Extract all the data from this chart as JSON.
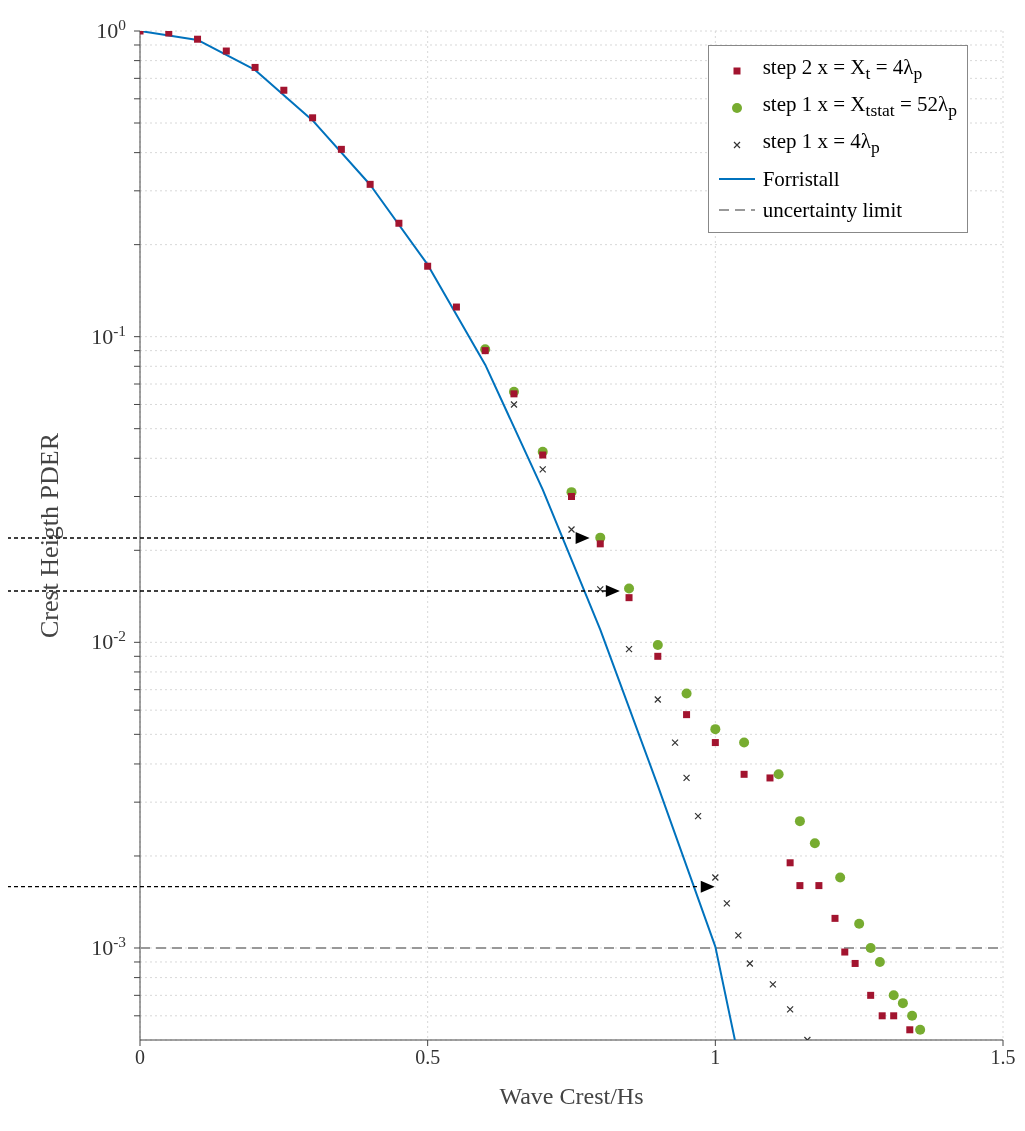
{
  "chart_data": {
    "type": "scatter",
    "xlabel": "Wave Crest/Hs",
    "ylabel": "Crest Heigth PDER",
    "xlim": [
      0,
      1.5
    ],
    "xticks": [
      0,
      0.5,
      1,
      1.5
    ],
    "ylim": [
      0.0005,
      1
    ],
    "log": "y",
    "grid": true,
    "legend": "top right",
    "yticks": [
      {
        "value": 0.0006,
        "label": null
      },
      {
        "value": 0.0007,
        "label": null
      },
      {
        "value": 0.0008,
        "label": null
      },
      {
        "value": 0.0009,
        "label": null
      },
      {
        "value": 0.001,
        "label": "10$^{-3}$"
      },
      {
        "value": 0.002,
        "label": null
      },
      {
        "value": 0.003,
        "label": null
      },
      {
        "value": 0.004,
        "label": null
      },
      {
        "value": 0.005,
        "label": null
      },
      {
        "value": 0.006,
        "label": null
      },
      {
        "value": 0.007,
        "label": null
      },
      {
        "value": 0.008,
        "label": null
      },
      {
        "value": 0.009,
        "label": null
      },
      {
        "value": 0.01,
        "label": "10$^{-2}$"
      },
      {
        "value": 0.02,
        "label": null
      },
      {
        "value": 0.03,
        "label": null
      },
      {
        "value": 0.04,
        "label": null
      },
      {
        "value": 0.05,
        "label": null
      },
      {
        "value": 0.06,
        "label": null
      },
      {
        "value": 0.07,
        "label": null
      },
      {
        "value": 0.08,
        "label": null
      },
      {
        "value": 0.09,
        "label": null
      },
      {
        "value": 0.1,
        "label": "10$^{-1}$"
      },
      {
        "value": 0.2,
        "label": null
      },
      {
        "value": 0.3,
        "label": null
      },
      {
        "value": 0.4,
        "label": null
      },
      {
        "value": 0.5,
        "label": null
      },
      {
        "value": 0.6,
        "label": null
      },
      {
        "value": 0.7,
        "label": null
      },
      {
        "value": 0.8,
        "label": null
      },
      {
        "value": 0.9,
        "label": null
      },
      {
        "value": 1,
        "label": "10$^{0}$"
      }
    ],
    "series": [
      {
        "name": "step 2 x = X$_{t}$ = 4λ$_{p}$",
        "marker": "square",
        "color": "#a2142f",
        "x": [
          0,
          0.05,
          0.1,
          0.15,
          0.2,
          0.25,
          0.3,
          0.35,
          0.4,
          0.45,
          0.5,
          0.55,
          0.6,
          0.65,
          0.7,
          0.75,
          0.8,
          0.85,
          0.9,
          0.95,
          1.0,
          1.05,
          1.095,
          1.13,
          1.147,
          1.18,
          1.208,
          1.225,
          1.243,
          1.27,
          1.29,
          1.31,
          1.338
        ],
        "values": [
          1,
          0.985,
          0.94,
          0.86,
          0.76,
          0.64,
          0.52,
          0.41,
          0.315,
          0.235,
          0.17,
          0.125,
          0.09,
          0.065,
          0.041,
          0.03,
          0.021,
          0.014,
          0.009,
          0.0058,
          0.0047,
          0.0037,
          0.0036,
          0.0019,
          0.0016,
          0.0016,
          0.00125,
          0.00097,
          0.00089,
          0.0007,
          0.0006,
          0.0006,
          0.00054
        ]
      },
      {
        "name": "step 1 x = X$_{t}$$_{stat}$ = 52λ$_{p}$",
        "marker": "circle",
        "color": "#77ac30",
        "x": [
          0.6,
          0.65,
          0.7,
          0.75,
          0.8,
          0.85,
          0.9,
          0.95,
          1.0,
          1.05,
          1.11,
          1.147,
          1.173,
          1.217,
          1.25,
          1.27,
          1.286,
          1.31,
          1.326,
          1.342,
          1.356
        ],
        "values": [
          0.091,
          0.066,
          0.042,
          0.031,
          0.022,
          0.015,
          0.0098,
          0.0068,
          0.0052,
          0.0047,
          0.0037,
          0.0026,
          0.0022,
          0.0017,
          0.0012,
          0.001,
          0.0009,
          0.0007,
          0.00066,
          0.0006,
          0.00054
        ]
      },
      {
        "name": "step 1 x = 4λ$_{p}$",
        "marker": "cross",
        "color": "#333333",
        "x": [
          0.65,
          0.7,
          0.75,
          0.8,
          0.85,
          0.9,
          0.93,
          0.95,
          0.97,
          1.0,
          1.02,
          1.04,
          1.06,
          1.1,
          1.13,
          1.16
        ],
        "values": [
          0.06,
          0.0368,
          0.0234,
          0.0149,
          0.0095,
          0.0065,
          0.0047,
          0.0036,
          0.0027,
          0.0017,
          0.0014,
          0.0011,
          0.00089,
          0.00076,
          0.00063,
          0.0005
        ]
      },
      {
        "name": "Forristall",
        "type": "line",
        "line_style": "solid",
        "color": "#0072bd",
        "x": [
          0,
          0.1,
          0.2,
          0.3,
          0.4,
          0.5,
          0.6,
          0.7,
          0.8,
          0.9,
          1.0,
          1.034
        ],
        "values": [
          1,
          0.935,
          0.746,
          0.51,
          0.314,
          0.172,
          0.081,
          0.0316,
          0.011,
          0.0034,
          0.00101,
          0.0005
        ]
      },
      {
        "name": "uncertainty limit",
        "type": "line",
        "line_style": "dashed",
        "color": "#999999",
        "x": [
          0,
          1.5
        ],
        "values": [
          0.001,
          0.001
        ]
      }
    ]
  }
}
